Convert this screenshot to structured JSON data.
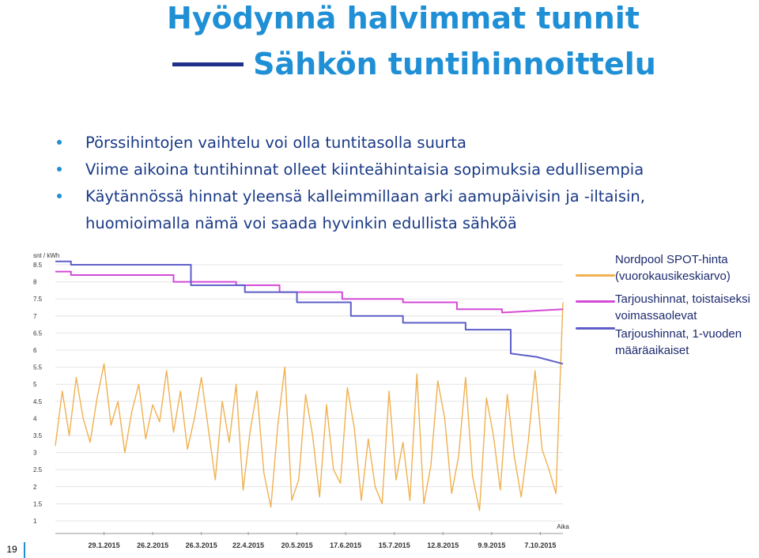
{
  "slide": {
    "title_line1": "Hyödynnä halvimmat tunnit",
    "title_line2": "Sähkön tuntihinnoittelu",
    "bullets": [
      "Pörssihintojen vaihtelu voi olla tuntitasolla suurta",
      "Viime aikoina tuntihinnat olleet kiinteähintaisia sopimuksia edullisempia",
      "Käytännössä hinnat yleensä kalleimmillaan arki aamupäivisin ja -iltaisin, huomioimalla nämä voi saada hyvinkin edullista sähköä"
    ],
    "page_number": "19"
  },
  "colors": {
    "title": "#1f8fd6",
    "bullet_text": "#1a3a86",
    "spot": "#f0b050",
    "fixed_temp": "#d44ad6",
    "fixed_year": "#5d5fc8"
  },
  "chart_data": {
    "type": "line",
    "ylabel": "snt / kWh",
    "xlabel": "Aika",
    "ylim": [
      1,
      8.5
    ],
    "yticks": [
      "1",
      "1.5",
      "2",
      "2.5",
      "3",
      "3.5",
      "4",
      "4.5",
      "5",
      "5.5",
      "6",
      "6.5",
      "7",
      "7.5",
      "8",
      "8.5"
    ],
    "xticks": [
      "29.1.2015",
      "26.2.2015",
      "26.3.2015",
      "22.4.2015",
      "20.5.2015",
      "17.6.2015",
      "15.7.2015",
      "12.8.2015",
      "9.9.2015",
      "7.10.2015"
    ],
    "series": [
      {
        "name": "Nordpool SPOT-hinta (vuorokausikeskiarvo)",
        "color": "#f0b050",
        "x": [
          "2015-01-01",
          "2015-01-05",
          "2015-01-09",
          "2015-01-13",
          "2015-01-17",
          "2015-01-21",
          "2015-01-25",
          "2015-01-29",
          "2015-02-02",
          "2015-02-06",
          "2015-02-10",
          "2015-02-14",
          "2015-02-18",
          "2015-02-22",
          "2015-02-26",
          "2015-03-02",
          "2015-03-06",
          "2015-03-10",
          "2015-03-14",
          "2015-03-18",
          "2015-03-22",
          "2015-03-26",
          "2015-03-30",
          "2015-04-03",
          "2015-04-07",
          "2015-04-11",
          "2015-04-15",
          "2015-04-19",
          "2015-04-23",
          "2015-04-27",
          "2015-05-01",
          "2015-05-05",
          "2015-05-09",
          "2015-05-13",
          "2015-05-17",
          "2015-05-21",
          "2015-05-25",
          "2015-05-29",
          "2015-06-02",
          "2015-06-06",
          "2015-06-10",
          "2015-06-14",
          "2015-06-18",
          "2015-06-22",
          "2015-06-26",
          "2015-06-30",
          "2015-07-04",
          "2015-07-08",
          "2015-07-12",
          "2015-07-16",
          "2015-07-20",
          "2015-07-24",
          "2015-07-28",
          "2015-08-01",
          "2015-08-05",
          "2015-08-09",
          "2015-08-13",
          "2015-08-17",
          "2015-08-21",
          "2015-08-25",
          "2015-08-29",
          "2015-09-02",
          "2015-09-06",
          "2015-09-10",
          "2015-09-14",
          "2015-09-18",
          "2015-09-22",
          "2015-09-26",
          "2015-09-30",
          "2015-10-04",
          "2015-10-08",
          "2015-10-12",
          "2015-10-16",
          "2015-10-20"
        ],
        "values": [
          3.2,
          4.8,
          3.5,
          5.2,
          4.0,
          3.3,
          4.6,
          5.6,
          3.8,
          4.5,
          3.0,
          4.2,
          5.0,
          3.4,
          4.4,
          3.9,
          5.4,
          3.6,
          4.8,
          3.1,
          4.0,
          5.2,
          3.7,
          2.2,
          4.5,
          3.3,
          5.0,
          1.9,
          3.6,
          4.8,
          2.4,
          1.4,
          3.8,
          5.5,
          1.6,
          2.2,
          4.7,
          3.5,
          1.7,
          4.4,
          2.5,
          2.1,
          4.9,
          3.7,
          1.6,
          3.4,
          2.0,
          1.5,
          4.8,
          2.2,
          3.3,
          1.6,
          5.3,
          1.5,
          2.6,
          5.1,
          4.0,
          1.8,
          2.9,
          5.2,
          2.3,
          1.3,
          4.6,
          3.5,
          1.9,
          4.7,
          2.9,
          1.7,
          3.3,
          5.4,
          3.1,
          2.5,
          1.8,
          7.4
        ]
      },
      {
        "name": "Tarjoushinnat, toistaiseksi voimassaolevat",
        "color": "#d44ad6",
        "x": [
          "2015-01-01",
          "2015-01-10",
          "2015-01-10",
          "2015-03-10",
          "2015-03-10",
          "2015-04-15",
          "2015-04-15",
          "2015-05-10",
          "2015-05-10",
          "2015-06-15",
          "2015-06-15",
          "2015-07-20",
          "2015-07-20",
          "2015-08-20",
          "2015-08-20",
          "2015-09-15",
          "2015-09-15",
          "2015-10-20"
        ],
        "values": [
          8.3,
          8.3,
          8.2,
          8.2,
          8.0,
          8.0,
          7.9,
          7.9,
          7.7,
          7.7,
          7.5,
          7.5,
          7.4,
          7.4,
          7.2,
          7.2,
          7.1,
          7.2
        ]
      },
      {
        "name": "Tarjoushinnat, 1-vuoden määräaikaiset",
        "color": "#5d5fc8",
        "x": [
          "2015-01-01",
          "2015-01-10",
          "2015-01-10",
          "2015-03-20",
          "2015-03-20",
          "2015-04-20",
          "2015-04-20",
          "2015-05-20",
          "2015-05-20",
          "2015-06-20",
          "2015-06-20",
          "2015-07-20",
          "2015-07-20",
          "2015-08-25",
          "2015-08-25",
          "2015-09-20",
          "2015-09-20",
          "2015-10-05",
          "2015-10-20"
        ],
        "values": [
          8.6,
          8.6,
          8.5,
          8.5,
          7.9,
          7.9,
          7.7,
          7.7,
          7.4,
          7.4,
          7.0,
          7.0,
          6.8,
          6.8,
          6.6,
          6.6,
          5.9,
          5.8,
          5.6
        ]
      }
    ]
  },
  "legend": [
    {
      "label": "Nordpool SPOT-hinta (vuorokausikeskiarvo)",
      "color": "#f0b050"
    },
    {
      "label": "Tarjoushinnat, toistaiseksi voimassaolevat",
      "color": "#d44ad6"
    },
    {
      "label": "Tarjoushinnat, 1-vuoden määräaikaiset",
      "color": "#5d5fc8"
    }
  ]
}
